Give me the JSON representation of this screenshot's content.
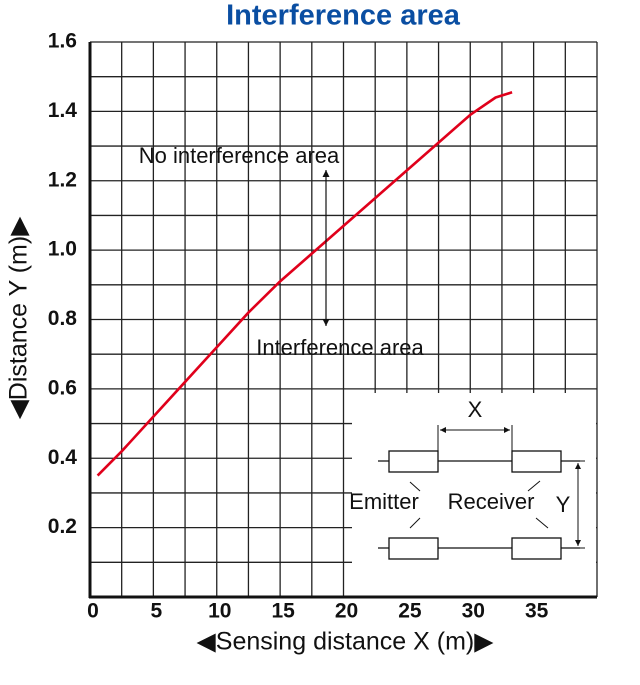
{
  "chart_data": {
    "type": "line",
    "title": "Interference area",
    "x_label": "◀Sensing distance X (m)▶",
    "y_label": "◀Distance Y (m)▶",
    "annotations": [
      "No interference area",
      "Interference area"
    ],
    "inset": {
      "x": "X",
      "y": "Y",
      "emitter": "Emitter",
      "receiver": "Receiver"
    },
    "xlim": [
      0,
      40
    ],
    "ylim": [
      0,
      1.6
    ],
    "xticks": [
      0,
      5,
      10,
      15,
      20,
      25,
      30,
      35
    ],
    "yticks": [
      {
        "value": 0.2,
        "label": "0.2"
      },
      {
        "value": 0.4,
        "label": "0.4"
      },
      {
        "value": 0.6,
        "label": "0.6"
      },
      {
        "value": 0.8,
        "label": "0.8"
      },
      {
        "value": 1.0,
        "label": "1.0"
      },
      {
        "value": 1.2,
        "label": "1.2"
      },
      {
        "value": 1.4,
        "label": "1.4"
      },
      {
        "value": 1.6,
        "label": "1.6"
      }
    ],
    "xminor_ticks": [
      2.5,
      7.5,
      12.5,
      17.5,
      22.5,
      27.5,
      32.5,
      37.5,
      40
    ],
    "yminor_ticks": [
      0.1,
      0.3,
      0.5,
      0.7,
      0.9,
      1.1,
      1.3,
      1.5
    ],
    "grid": true,
    "series": [
      {
        "color": "#e0001b",
        "x": [
          0.6,
          2.5,
          5,
          7.5,
          10,
          12.5,
          15,
          17.5,
          20,
          22.5,
          25,
          27.5,
          30,
          32,
          33.3
        ],
        "values": [
          0.35,
          0.42,
          0.52,
          0.62,
          0.72,
          0.82,
          0.91,
          0.99,
          1.07,
          1.15,
          1.23,
          1.31,
          1.39,
          1.44,
          1.455
        ]
      }
    ]
  }
}
